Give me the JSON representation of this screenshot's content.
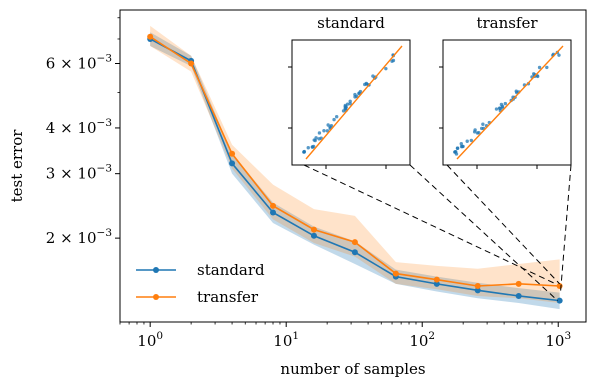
{
  "chart_data": {
    "type": "line",
    "xlabel": "number of samples",
    "ylabel": "test error",
    "xscale": "log",
    "yscale": "log",
    "xlim": [
      0.6,
      1600
    ],
    "ylim": [
      0.00118,
      0.0084
    ],
    "grid": false,
    "legend_position": "lower-left",
    "x_ticks": [
      {
        "value": 1,
        "base": "10",
        "exp": "0"
      },
      {
        "value": 10,
        "base": "10",
        "exp": "1"
      },
      {
        "value": 100,
        "base": "10",
        "exp": "2"
      },
      {
        "value": 1000,
        "base": "10",
        "exp": "3"
      }
    ],
    "y_ticks": [
      {
        "value": 0.002,
        "mantissa": "2",
        "times": "×",
        "base": "10",
        "exp": "−3"
      },
      {
        "value": 0.003,
        "mantissa": "3",
        "times": "×",
        "base": "10",
        "exp": "−3"
      },
      {
        "value": 0.004,
        "mantissa": "4",
        "times": "×",
        "base": "10",
        "exp": "−3"
      },
      {
        "value": 0.006,
        "mantissa": "6",
        "times": "×",
        "base": "10",
        "exp": "−3"
      }
    ],
    "x": [
      1,
      2,
      4,
      8,
      16,
      32,
      64,
      128,
      256,
      512,
      1024
    ],
    "series": [
      {
        "name": "standard",
        "color": "#1f77b4",
        "values": [
          0.007,
          0.0061,
          0.0032,
          0.00235,
          0.00203,
          0.00183,
          0.00157,
          0.0015,
          0.00144,
          0.00139,
          0.00135
        ],
        "lower": [
          0.0067,
          0.0059,
          0.003,
          0.0022,
          0.00192,
          0.0017,
          0.0015,
          0.00143,
          0.00137,
          0.00133,
          0.00128
        ],
        "upper": [
          0.0073,
          0.0063,
          0.0034,
          0.0025,
          0.00215,
          0.00196,
          0.00164,
          0.00157,
          0.00151,
          0.00146,
          0.00142
        ]
      },
      {
        "name": "transfer",
        "color": "#ff7f0e",
        "values": [
          0.0071,
          0.006,
          0.0034,
          0.00245,
          0.00211,
          0.00195,
          0.0016,
          0.00154,
          0.00148,
          0.0015,
          0.00148
        ],
        "lower": [
          0.0067,
          0.0057,
          0.0031,
          0.00225,
          0.00194,
          0.00178,
          0.0015,
          0.00145,
          0.00139,
          0.00137,
          0.00133
        ],
        "upper": [
          0.0076,
          0.0063,
          0.0036,
          0.0028,
          0.0024,
          0.0023,
          0.00172,
          0.00168,
          0.00165,
          0.0017,
          0.00175
        ]
      }
    ],
    "insets": [
      {
        "title": "standard",
        "zoom_from_x": 512
      },
      {
        "title": "transfer",
        "zoom_from_x": 1024
      }
    ]
  }
}
